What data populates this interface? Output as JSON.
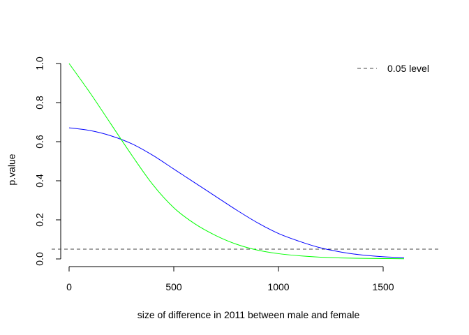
{
  "chart_data": {
    "type": "line",
    "title": "",
    "xlabel": "size of difference in 2011 between male and female",
    "ylabel": "p.value",
    "xlim": [
      0,
      1600
    ],
    "ylim": [
      0,
      1.0
    ],
    "x_ticks": [
      0,
      500,
      1000,
      1500
    ],
    "y_ticks": [
      0.0,
      0.2,
      0.4,
      0.6,
      0.8,
      1.0
    ],
    "x_tick_labels": [
      "0",
      "500",
      "1000",
      "1500"
    ],
    "y_tick_labels": [
      "0.0",
      "0.2",
      "0.4",
      "0.6",
      "0.8",
      "1.0"
    ],
    "grid": false,
    "legend_position": "top-right",
    "x": [
      0,
      100,
      200,
      300,
      400,
      500,
      600,
      700,
      800,
      900,
      1000,
      1100,
      1200,
      1300,
      1400,
      1500,
      1600
    ],
    "series": [
      {
        "color": "#0000ff",
        "values": [
          0.671,
          0.657,
          0.63,
          0.589,
          0.53,
          0.46,
          0.39,
          0.32,
          0.25,
          0.185,
          0.13,
          0.09,
          0.057,
          0.035,
          0.02,
          0.011,
          0.006
        ]
      },
      {
        "color": "#00ff00",
        "values": [
          1.0,
          0.85,
          0.69,
          0.53,
          0.38,
          0.262,
          0.18,
          0.12,
          0.075,
          0.045,
          0.027,
          0.016,
          0.009,
          0.005,
          0.003,
          0.002,
          0.001
        ]
      }
    ],
    "reference_line": {
      "y": 0.05,
      "style": "dashed",
      "color": "#444444",
      "label": "0.05 level"
    }
  }
}
